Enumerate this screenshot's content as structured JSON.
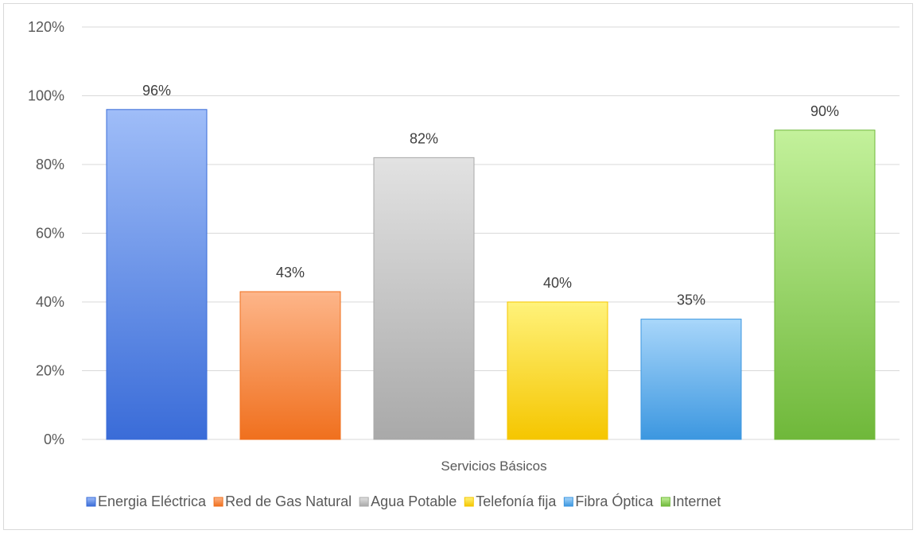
{
  "chart_data": {
    "type": "bar",
    "title": "",
    "xlabel": "Servicios Básicos",
    "ylabel": "",
    "ylim": [
      0,
      120
    ],
    "yticks": [
      0,
      20,
      40,
      60,
      80,
      100,
      120
    ],
    "ytick_format": "{v}%",
    "grid": true,
    "legend_position": "bottom",
    "series": [
      {
        "name": "Energia Eléctrica",
        "value": 96,
        "label": "96%",
        "color": "#5b8def",
        "color_light": "#9fbdf8",
        "color_dark": "#3a6cd8"
      },
      {
        "name": "Red de Gas Natural",
        "value": 43,
        "label": "43%",
        "color": "#f98b43",
        "color_light": "#fdb589",
        "color_dark": "#f0701e"
      },
      {
        "name": "Agua Potable",
        "value": 82,
        "label": "82%",
        "color": "#c7c7c7",
        "color_light": "#e2e2e2",
        "color_dark": "#a9a9a9"
      },
      {
        "name": "Telefonía fija",
        "value": 40,
        "label": "40%",
        "color": "#ffe033",
        "color_light": "#fff27a",
        "color_dark": "#f5c600"
      },
      {
        "name": "Fibra Óptica",
        "value": 35,
        "label": "35%",
        "color": "#66b4f0",
        "color_light": "#a8d6fa",
        "color_dark": "#3c97e0"
      },
      {
        "name": "Internet",
        "value": 90,
        "label": "90%",
        "color": "#8fd65a",
        "color_light": "#c3f19b",
        "color_dark": "#6fb83a"
      }
    ]
  }
}
